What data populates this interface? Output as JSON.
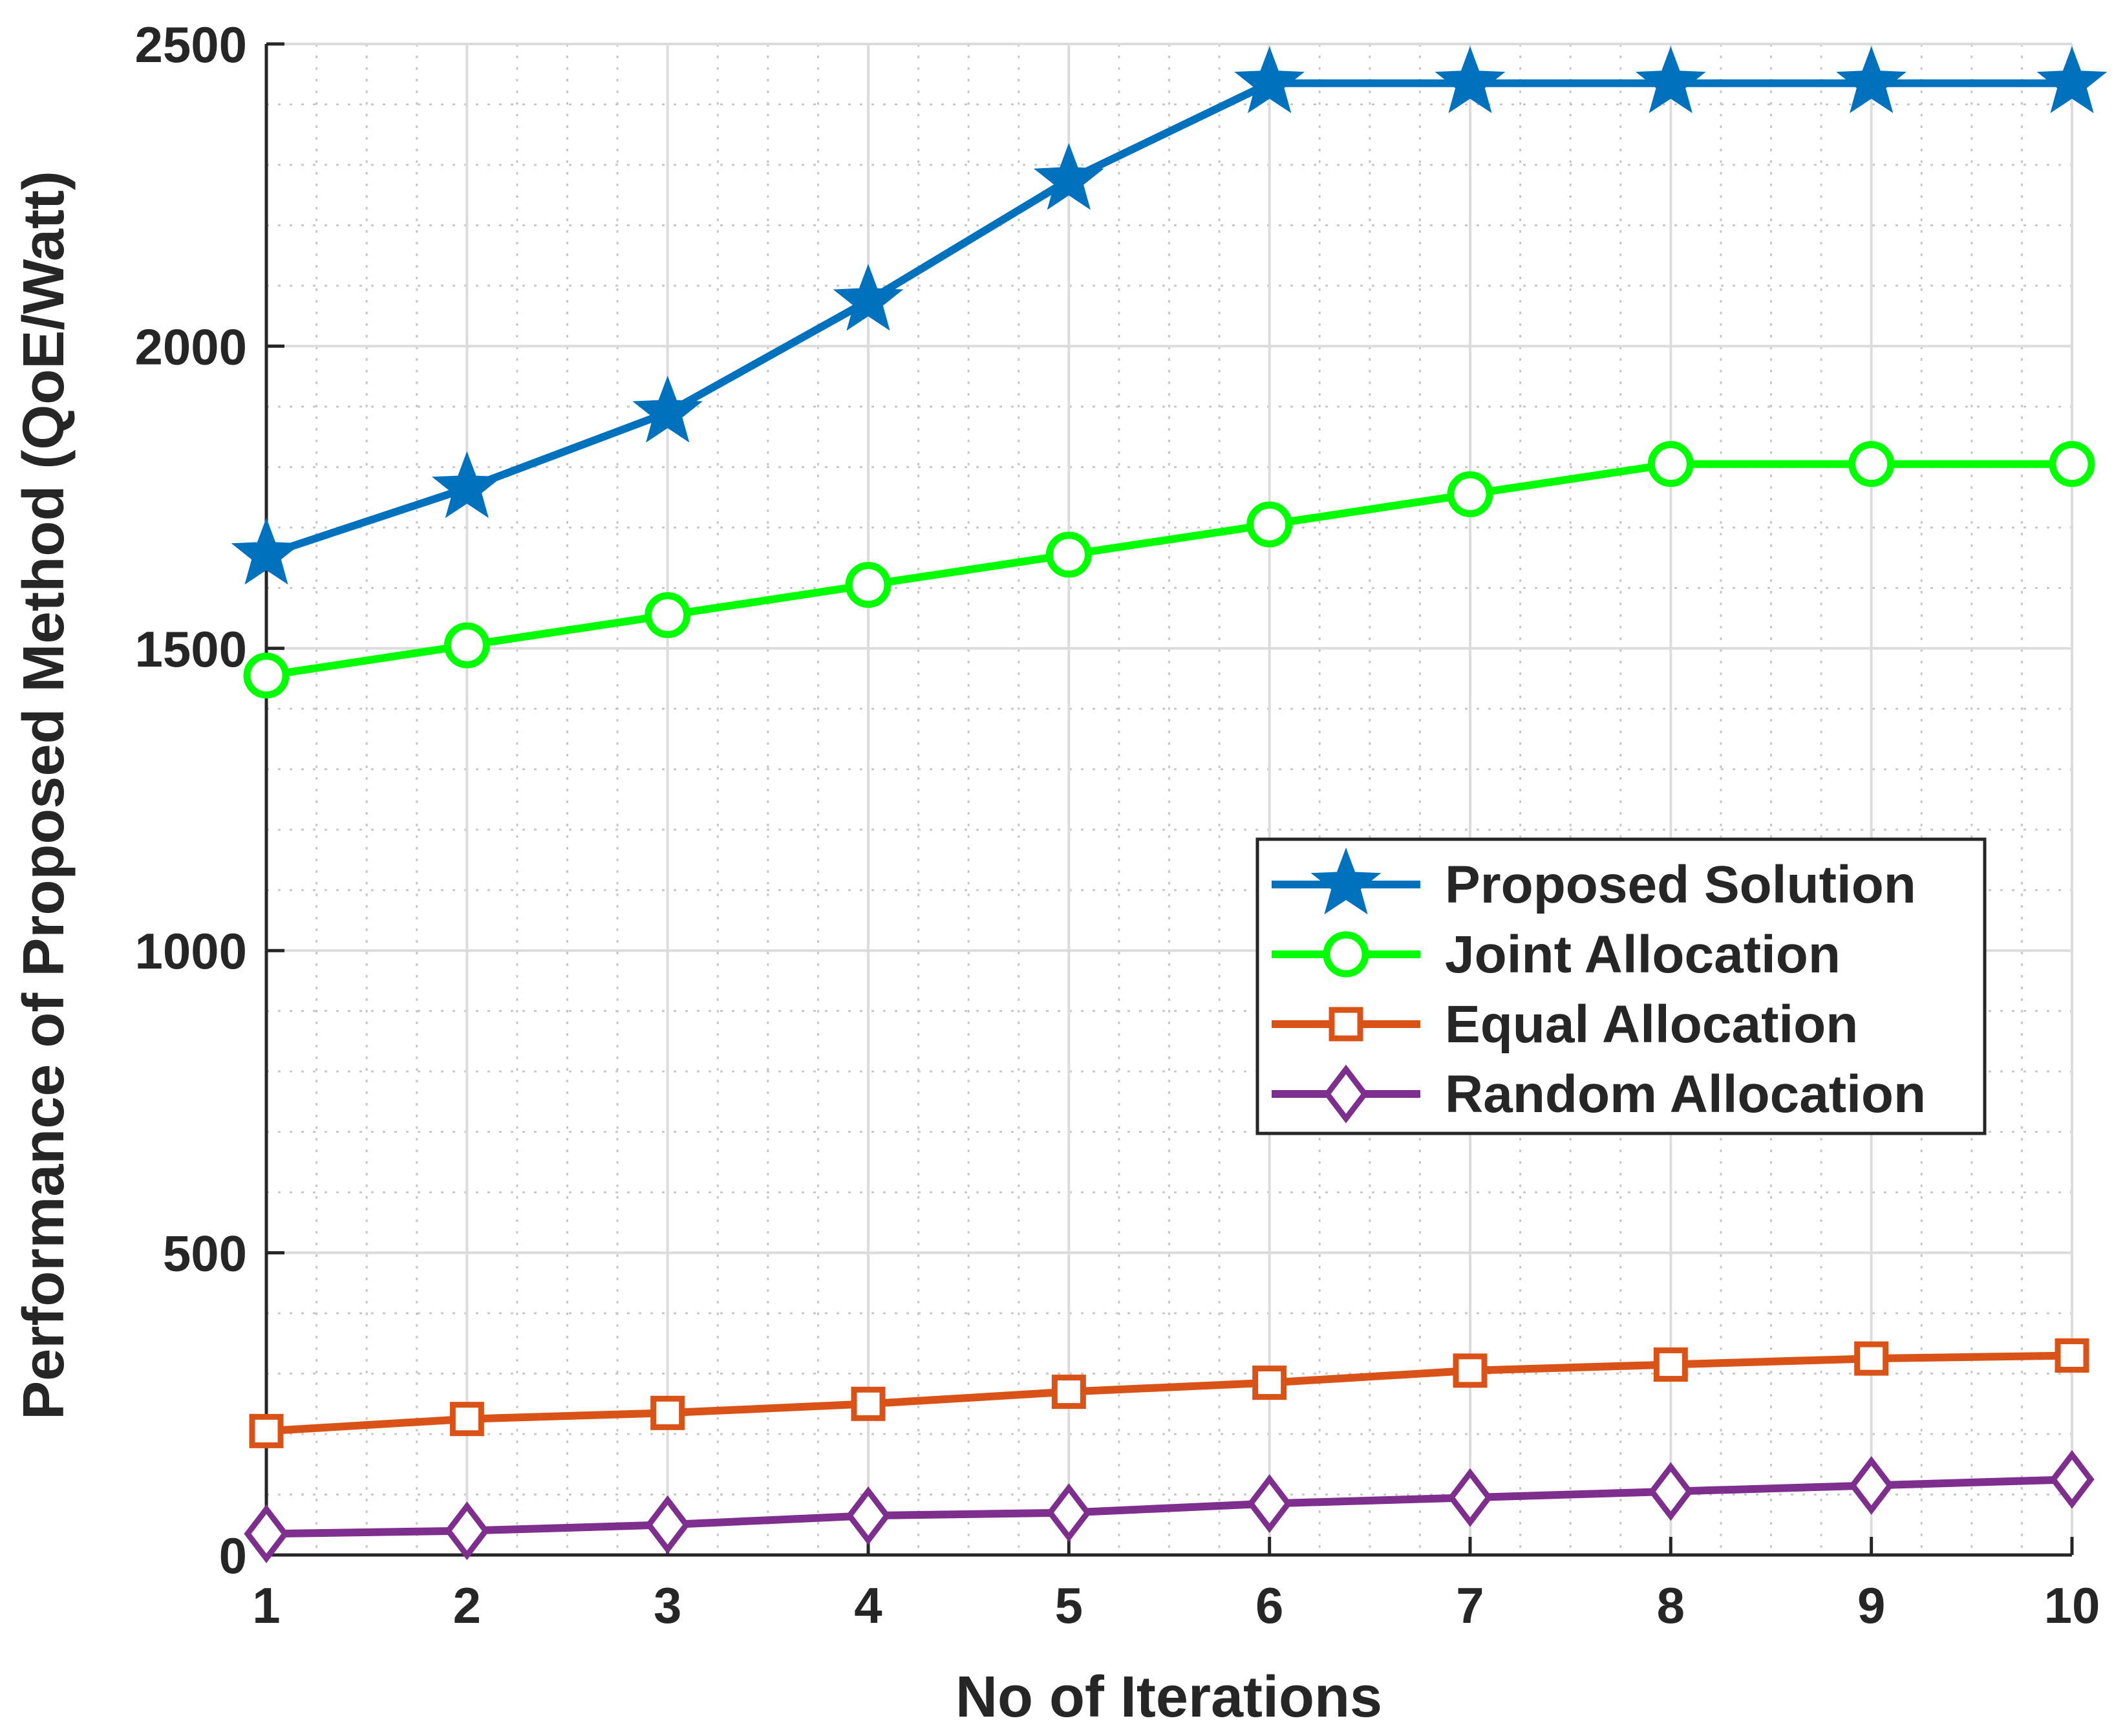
{
  "chart_data": {
    "type": "line",
    "title": "",
    "xlabel": "No of Iterations",
    "ylabel": "Performance of Proposed Method (QoE/Watt)",
    "xlim": [
      1,
      10
    ],
    "ylim": [
      0,
      2500
    ],
    "x": [
      1,
      2,
      3,
      4,
      5,
      6,
      7,
      8,
      9,
      10
    ],
    "x_ticks": [
      "1",
      "2",
      "3",
      "4",
      "5",
      "6",
      "7",
      "8",
      "9",
      "10"
    ],
    "y_ticks": [
      "0",
      "500",
      "1000",
      "1500",
      "2000",
      "2500"
    ],
    "y_tick_values": [
      0,
      500,
      1000,
      1500,
      2000,
      2500
    ],
    "grid": true,
    "minor_grid": true,
    "legend_position": "right, middle",
    "series": [
      {
        "name": "Proposed Solution",
        "marker": "star",
        "color": "#0072BD",
        "values": [
          1655,
          1765,
          1890,
          2075,
          2275,
          2435,
          2435,
          2435,
          2435,
          2435
        ]
      },
      {
        "name": "Joint Allocation",
        "marker": "circle",
        "color": "#00FF00",
        "values": [
          1455,
          1505,
          1555,
          1605,
          1655,
          1705,
          1755,
          1805,
          1805,
          1805
        ]
      },
      {
        "name": "Equal Allocation",
        "marker": "square",
        "color": "#D95319",
        "values": [
          205,
          225,
          235,
          250,
          270,
          285,
          305,
          315,
          325,
          330
        ]
      },
      {
        "name": "Random Allocation",
        "marker": "diamond",
        "color": "#7E2F8E",
        "values": [
          35,
          40,
          50,
          65,
          70,
          85,
          95,
          105,
          115,
          125
        ]
      }
    ]
  }
}
